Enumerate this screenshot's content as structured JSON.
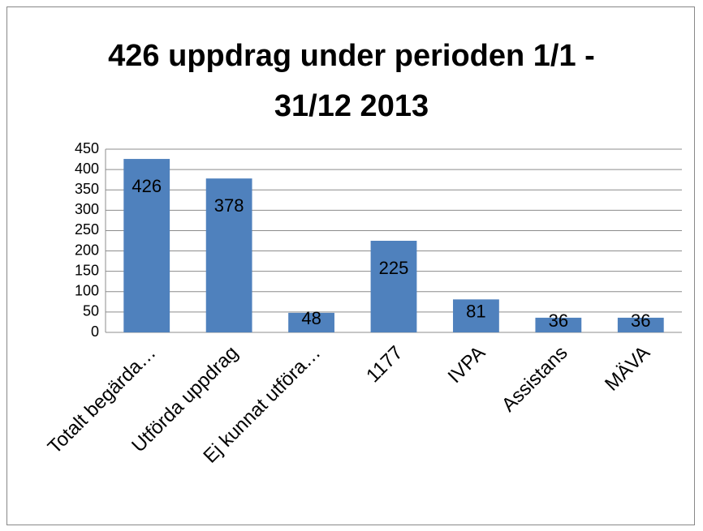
{
  "chart_data": {
    "type": "bar",
    "title": "426 uppdrag under perioden 1/1 - 31/12 2013",
    "categories": [
      "Totalt begärda…",
      "Utförda uppdrag",
      "Ej kunnat utföra…",
      "1177",
      "IVPA",
      "Assistans",
      "MÄVA"
    ],
    "values": [
      426,
      378,
      48,
      225,
      81,
      36,
      36
    ],
    "color": "#4f81bd",
    "ylim": [
      0,
      450
    ],
    "yticks": [
      0,
      50,
      100,
      150,
      200,
      250,
      300,
      350,
      400,
      450
    ],
    "grid": true
  }
}
